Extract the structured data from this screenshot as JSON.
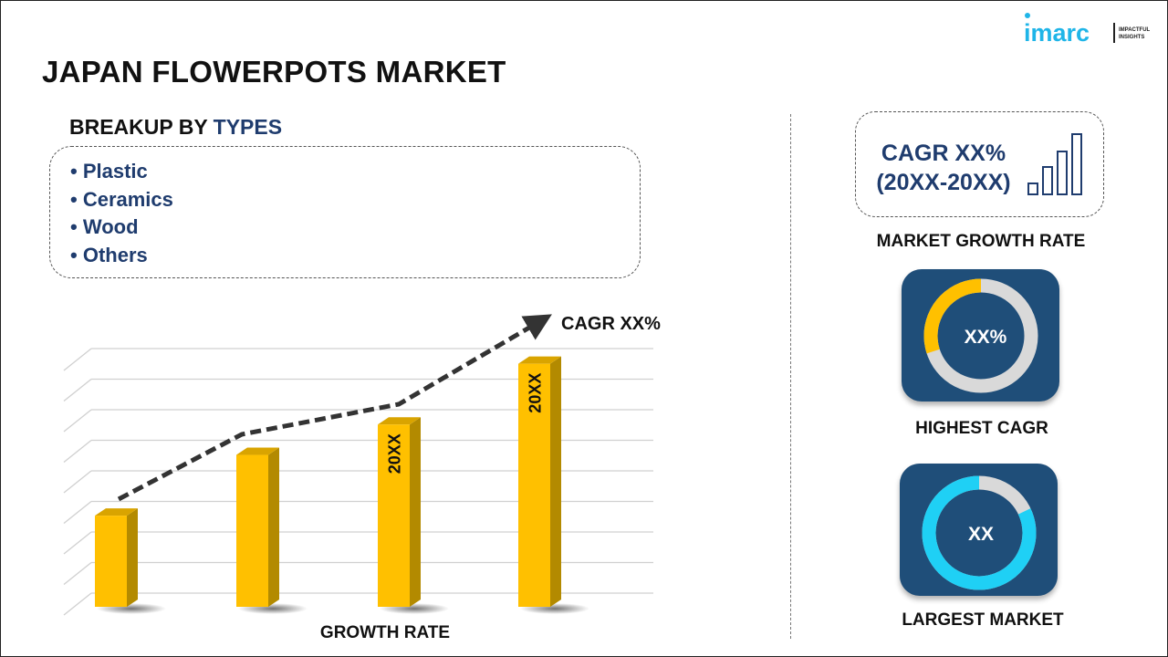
{
  "title": "JAPAN FLOWERPOTS MARKET",
  "logo": {
    "brand": "imarc",
    "tagline_1": "IMPACTFUL",
    "tagline_2": "INSIGHTS"
  },
  "breakup": {
    "prefix": "BREAKUP BY ",
    "highlight": "TYPES",
    "items": [
      "Plastic",
      "Ceramics",
      "Wood",
      "Others"
    ]
  },
  "chart_data": {
    "type": "bar",
    "categories": [
      "",
      "",
      "",
      ""
    ],
    "values": [
      30,
      50,
      60,
      80
    ],
    "bar_labels": [
      "",
      "",
      "20XX",
      "20XX"
    ],
    "trend_label": "CAGR XX%",
    "xlabel": "GROWTH RATE",
    "ylabel": "",
    "ylim": [
      0,
      85
    ],
    "grid": true,
    "bar_color": "#ffc000"
  },
  "right": {
    "cagr_line1": "CAGR XX%",
    "cagr_line2": "(20XX-20XX)",
    "market_growth_label": "MARKET GROWTH RATE",
    "highest": {
      "value": "XX%",
      "label": "HIGHEST CAGR",
      "fraction": 0.3,
      "accent": "#ffc000"
    },
    "largest": {
      "value": "XX",
      "label": "LARGEST MARKET",
      "fraction": 0.82,
      "accent": "#1fd0f5"
    }
  },
  "colors": {
    "navy": "#1f3c6e",
    "tile": "#1f4e79",
    "track": "#d9d9d9"
  }
}
